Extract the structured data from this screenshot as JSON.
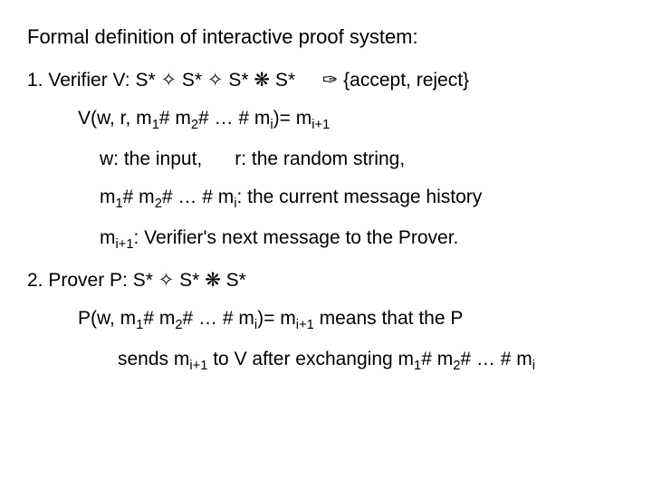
{
  "title": "Formal definition of interactive proof system:",
  "item1": {
    "prefix": "1.  Verifier  V: ",
    "sig_html": "S* <span class='sym'>✧</span> S* <span class='sym'>✧</span> S* <span class='sym'>❋</span> S* <span class='gap-m'></span> <span class='sym'>✑</span> {accept, reject}"
  },
  "v_fn": "V(w, r, m",
  "v_fn2": "# m",
  "v_fn3": "# … # m",
  "v_fn4": ")= m",
  "w_label": "w: the input,",
  "r_label": "r: the random string,",
  "hist1": "m",
  "hist_mid": "# m",
  "hist_mid2": "# … # m",
  "hist_tail": ": the current message history",
  "next1": "m",
  "next_tail": ": Verifier's next message to the Prover.",
  "item2": {
    "prefix": "2.  Prover  P: ",
    "sig_html": "S* <span class='sym'>✧</span> S* <span class='sym'>❋</span> S*"
  },
  "p_fn": "P(w, m",
  "p_fn2": "# m",
  "p_fn3": "# … # m",
  "p_fn4": ")= m",
  "p_fn_tail": " means that the P",
  "sends1": "sends m",
  "sends2": " to V after exchanging m",
  "sends3": "# m",
  "sends4": "# … # m",
  "sub1": "1",
  "sub2": "2",
  "subi": "i",
  "subi1": "i+1"
}
